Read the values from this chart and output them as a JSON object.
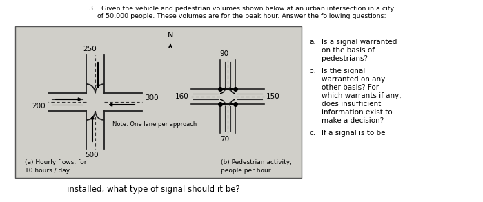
{
  "title_line1": "3.   Given the vehicle and pedestrian volumes shown below at an urban intersection in a city",
  "title_line2": "of 50,000 people. These volumes are for the peak hour. Answer the following questions:",
  "footer": "installed, what type of signal should it be?",
  "diagram_bg": "#d0cfc9",
  "fig_bg": "#ffffff",
  "left_intersection": {
    "north_vol": "250",
    "west_vol": "200",
    "east_vol": "300",
    "south_vol": "500",
    "note": "Note: One lane per approach",
    "caption_line1": "(a) Hourly flows, for",
    "caption_line2": "10 hours / day"
  },
  "right_intersection": {
    "north_vol": "90",
    "west_vol": "160",
    "east_vol": "150",
    "south_vol": "70",
    "caption_line1": "(b) Pedestrian activity,",
    "caption_line2": "people per hour"
  },
  "questions": [
    [
      "a.",
      "Is a signal warranted",
      "on the basis of",
      "pedestrians?"
    ],
    [
      "b.",
      "Is the signal",
      "warranted on any",
      "other basis? For",
      "which warrants if any,",
      "does insufficient",
      "information exist to",
      "make a decision?"
    ],
    [
      "c.",
      "If a signal is to be"
    ]
  ]
}
